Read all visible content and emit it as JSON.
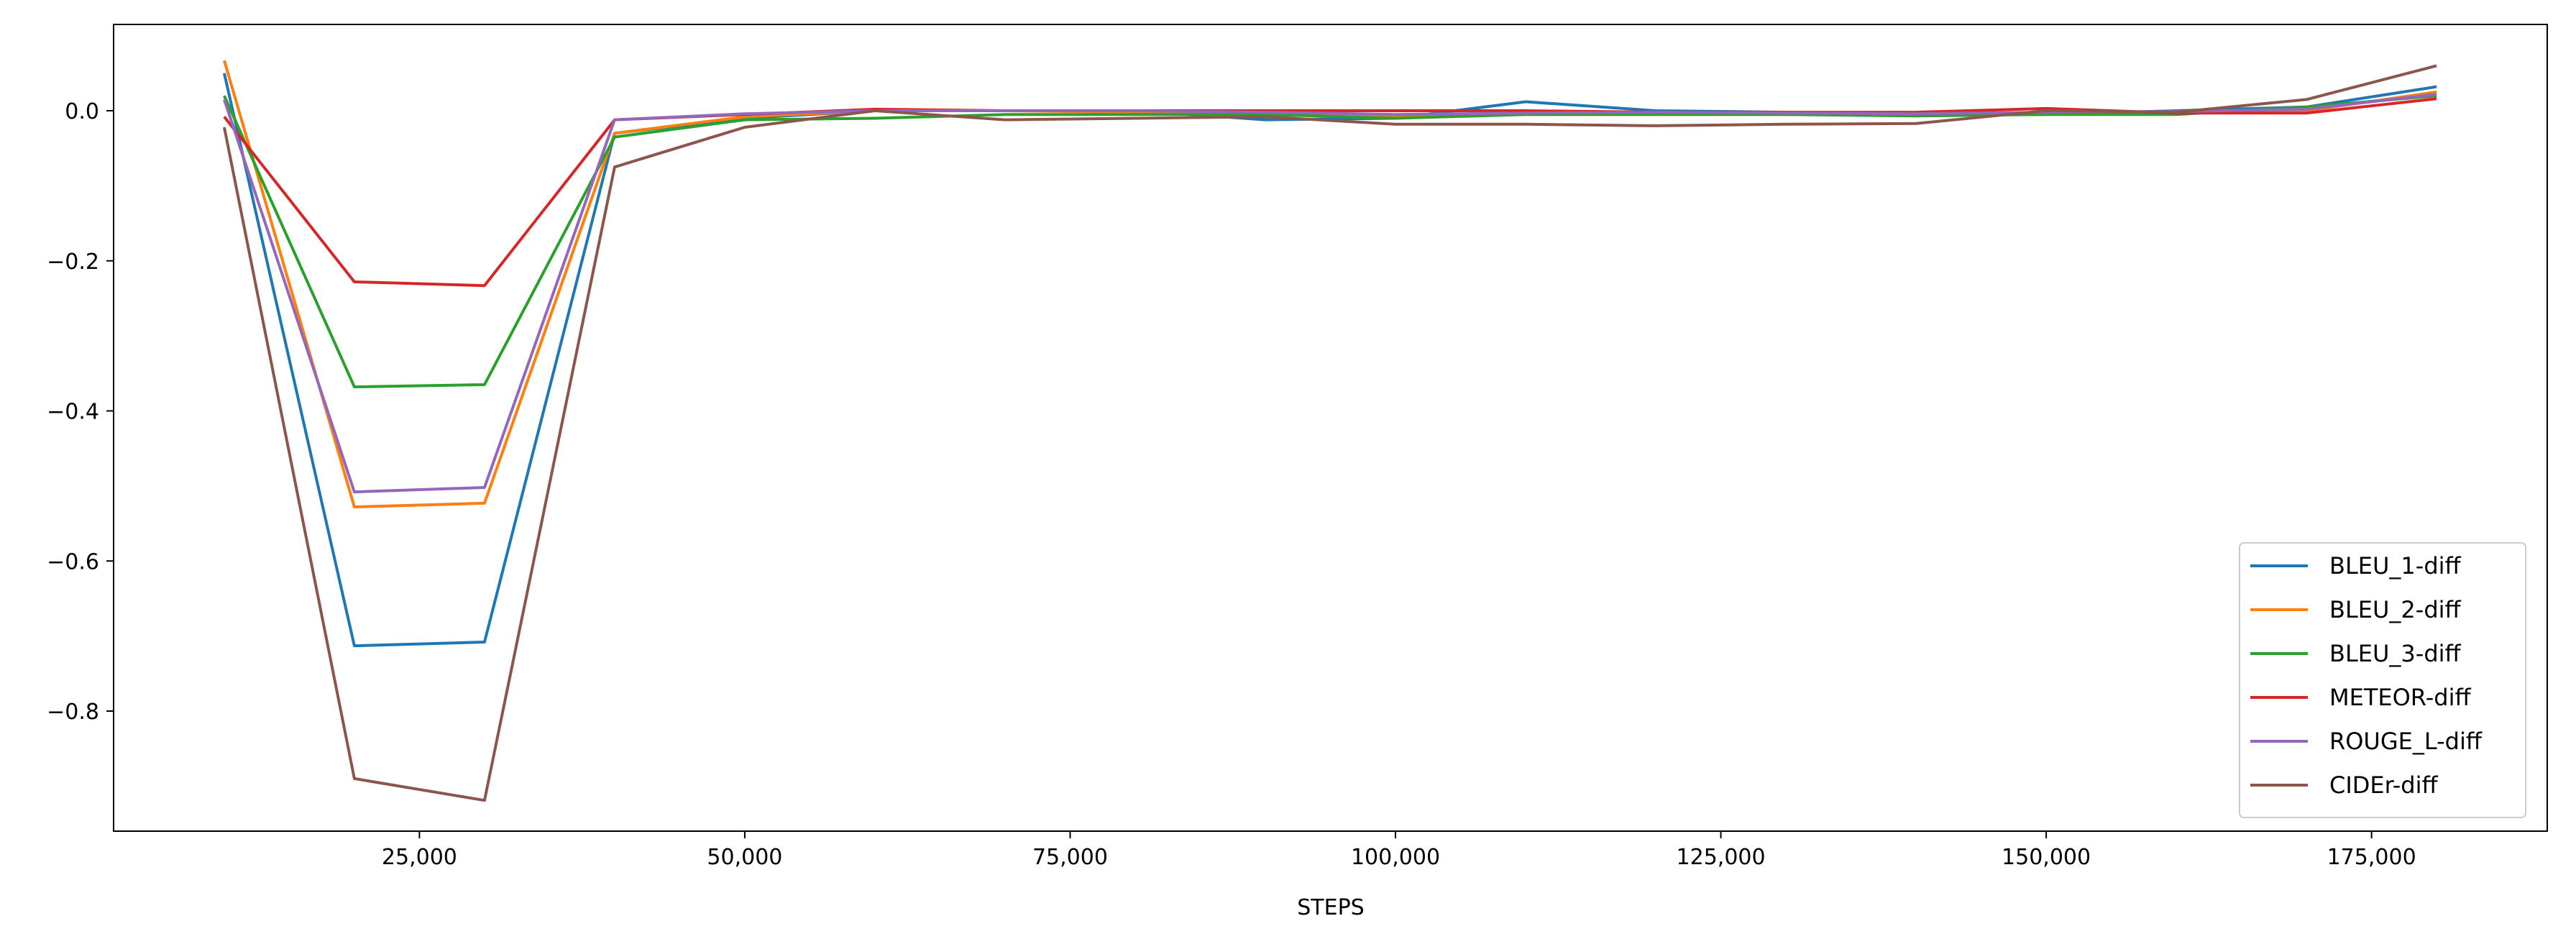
{
  "chart_data": {
    "type": "line",
    "title": "",
    "xlabel": "STEPS",
    "ylabel": "",
    "xlim": [
      1500,
      188500
    ],
    "ylim": [
      -0.96,
      0.115
    ],
    "x_ticks": [
      25000,
      50000,
      75000,
      100000,
      125000,
      150000,
      175000
    ],
    "x_tick_labels": [
      "25,000",
      "50,000",
      "75,000",
      "100,000",
      "125,000",
      "150,000",
      "175,000"
    ],
    "y_ticks": [
      0.0,
      -0.2,
      -0.4,
      -0.6,
      -0.8
    ],
    "y_tick_labels": [
      "0.0",
      "−0.2",
      "−0.4",
      "−0.6",
      "−0.8"
    ],
    "grid": false,
    "legend_position": "lower-right",
    "x": [
      10000,
      20000,
      30000,
      40000,
      50000,
      60000,
      70000,
      80000,
      90000,
      100000,
      110000,
      120000,
      130000,
      140000,
      150000,
      160000,
      170000,
      180000
    ],
    "series": [
      {
        "name": "BLEU_1-diff",
        "color": "#1f77b4",
        "values": [
          0.05,
          -0.713,
          -0.708,
          -0.03,
          -0.01,
          0.0,
          0.0,
          0.0,
          -0.012,
          -0.01,
          0.012,
          0.0,
          -0.002,
          -0.005,
          -0.005,
          0.0,
          0.005,
          0.032
        ]
      },
      {
        "name": "BLEU_2-diff",
        "color": "#ff7f0e",
        "values": [
          0.067,
          -0.528,
          -0.523,
          -0.03,
          -0.008,
          0.0,
          0.0,
          -0.002,
          -0.005,
          -0.008,
          -0.005,
          -0.005,
          -0.005,
          -0.005,
          -0.002,
          -0.002,
          0.0,
          0.025
        ]
      },
      {
        "name": "BLEU_3-diff",
        "color": "#2ca02c",
        "values": [
          0.02,
          -0.368,
          -0.365,
          -0.035,
          -0.012,
          -0.01,
          -0.005,
          -0.005,
          -0.005,
          -0.01,
          -0.005,
          -0.005,
          -0.005,
          -0.007,
          -0.005,
          -0.005,
          0.005,
          0.02
        ]
      },
      {
        "name": "METEOR-diff",
        "color": "#d62728",
        "values": [
          -0.008,
          -0.228,
          -0.233,
          -0.012,
          -0.005,
          0.002,
          0.0,
          0.0,
          0.0,
          0.0,
          0.0,
          -0.002,
          -0.002,
          -0.002,
          0.003,
          -0.003,
          -0.003,
          0.016
        ]
      },
      {
        "name": "ROUGE_L-diff",
        "color": "#9467bd",
        "values": [
          0.015,
          -0.508,
          -0.502,
          -0.012,
          -0.004,
          0.0,
          0.0,
          0.0,
          -0.002,
          -0.005,
          -0.003,
          -0.002,
          -0.003,
          -0.004,
          -0.002,
          -0.001,
          0.002,
          0.022
        ]
      },
      {
        "name": "CIDEr-diff",
        "color": "#8c564b",
        "values": [
          -0.022,
          -0.89,
          -0.919,
          -0.075,
          -0.022,
          0.0,
          -0.012,
          -0.01,
          -0.008,
          -0.018,
          -0.018,
          -0.02,
          -0.018,
          -0.017,
          0.0,
          -0.002,
          0.015,
          0.06
        ]
      }
    ]
  }
}
